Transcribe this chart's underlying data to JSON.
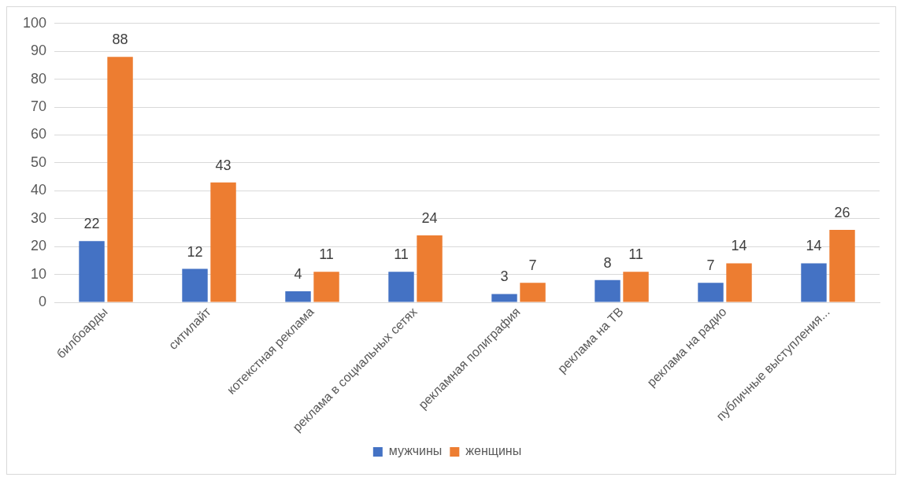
{
  "chart_data": {
    "type": "bar",
    "categories": [
      "билбоарды",
      "ситилайт",
      "котекстная реклама",
      "реклама в социальных сетях",
      "рекламная полиграфия",
      "реклама на ТВ",
      "реклама на радио",
      "публичные выступления..."
    ],
    "series": [
      {
        "name": "мужчины",
        "color": "#4472c4",
        "values": [
          22,
          12,
          4,
          11,
          3,
          8,
          7,
          14
        ]
      },
      {
        "name": "женщины",
        "color": "#ed7d31",
        "values": [
          88,
          43,
          11,
          24,
          7,
          11,
          14,
          26
        ]
      }
    ],
    "ylim": [
      0,
      100
    ],
    "yticks": [
      0,
      10,
      20,
      30,
      40,
      50,
      60,
      70,
      80,
      90,
      100
    ],
    "grid": "y",
    "legend": "bottom",
    "data_labels": true
  }
}
